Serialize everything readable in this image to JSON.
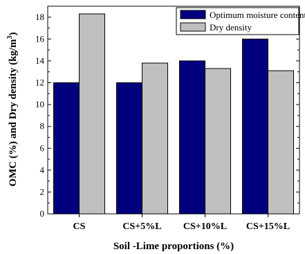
{
  "chart_data": {
    "type": "bar",
    "categories": [
      "CS",
      "CS+5%L",
      "CS+10%L",
      "CS+15%L"
    ],
    "series": [
      {
        "name": "Optimum moisture content",
        "values": [
          12.0,
          12.0,
          14.0,
          16.0
        ],
        "color": "#00007f",
        "edge": "#000000"
      },
      {
        "name": "Dry density",
        "values": [
          18.3,
          13.8,
          13.3,
          13.1
        ],
        "color": "#bfbfbf",
        "edge": "#000000"
      }
    ],
    "xlabel": "Soil -Lime proportions (%)",
    "ylabel": "OMC (%) and Dry density (kg/m",
    "ylabel_sup": "3",
    "ylabel_end": ")",
    "ylim": [
      0,
      19
    ],
    "yticks": [
      "0",
      "2",
      "4",
      "6",
      "8",
      "10",
      "12",
      "14",
      "16",
      "18"
    ],
    "legend_position": "top-right",
    "grid": false
  }
}
